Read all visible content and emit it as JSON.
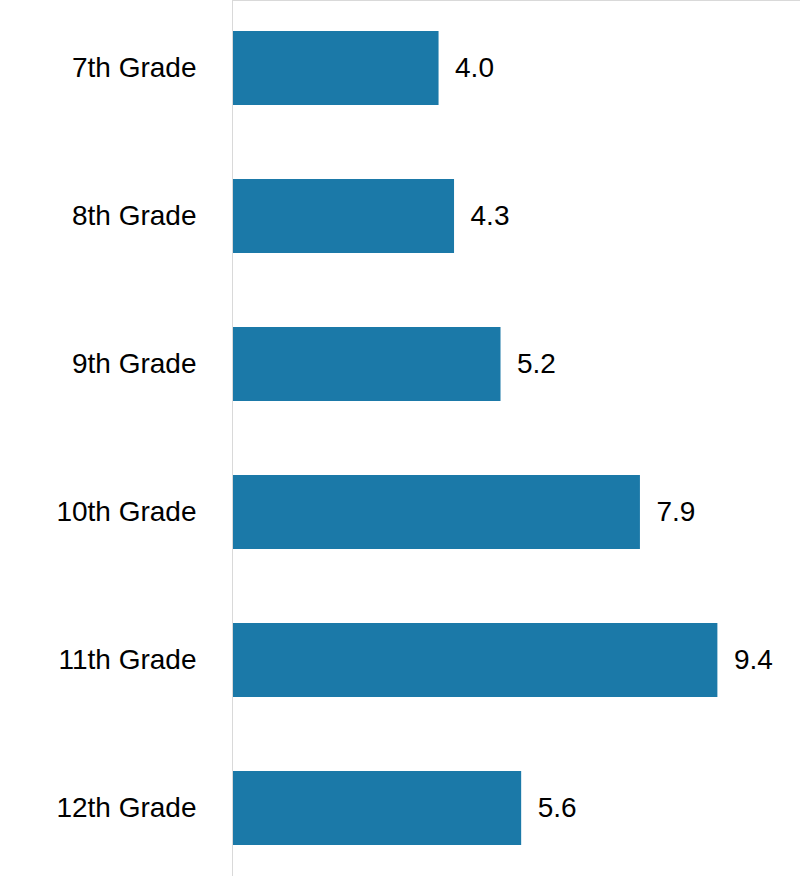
{
  "chart_data": {
    "type": "bar",
    "orientation": "horizontal",
    "categories": [
      "7th Grade",
      "8th Grade",
      "9th Grade",
      "10th Grade",
      "11th Grade",
      "12th Grade"
    ],
    "values": [
      4.0,
      4.3,
      5.2,
      7.9,
      9.4,
      5.6
    ],
    "value_labels": [
      "4.0",
      "4.3",
      "5.2",
      "7.9",
      "9.4",
      "5.6"
    ],
    "color": "#1b79a8",
    "xlim": [
      0,
      11
    ],
    "data_labels": true,
    "tick_labels": "y",
    "grid": false
  }
}
